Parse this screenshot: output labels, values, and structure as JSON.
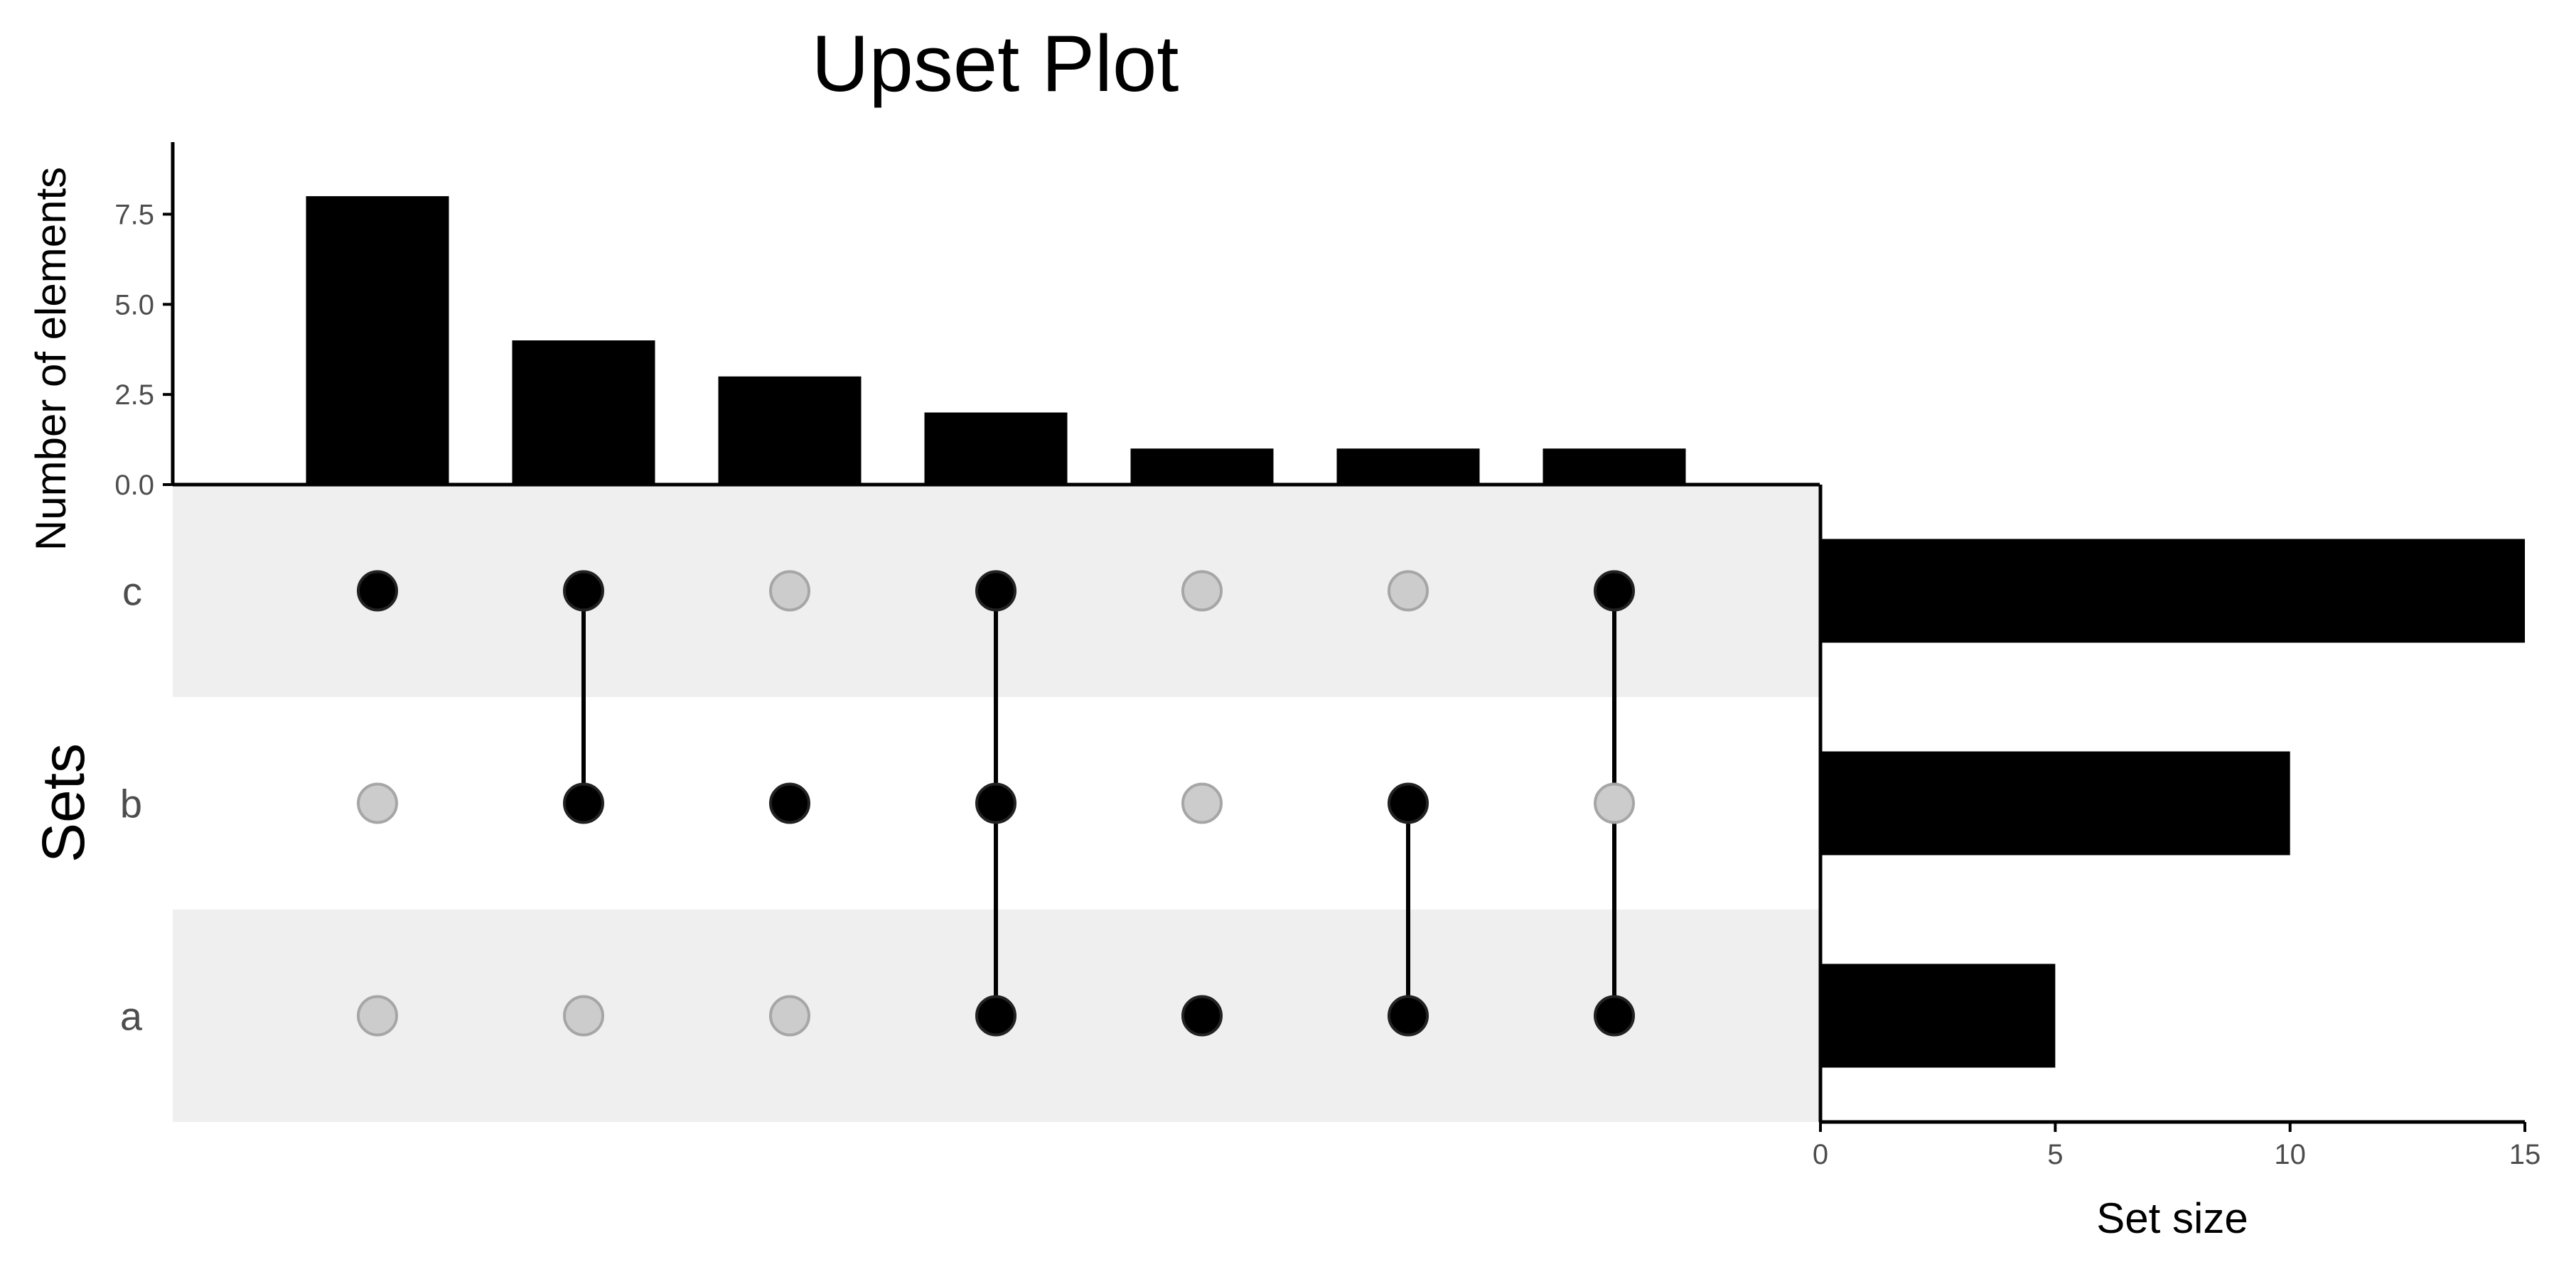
{
  "chart_data": {
    "type": "upset",
    "title": "Upset Plot",
    "sets": [
      "c",
      "b",
      "a"
    ],
    "set_sizes": [
      15,
      10,
      5
    ],
    "intersections": [
      {
        "members": [
          "c"
        ],
        "count": 8
      },
      {
        "members": [
          "c",
          "b"
        ],
        "count": 4
      },
      {
        "members": [
          "b"
        ],
        "count": 3
      },
      {
        "members": [
          "c",
          "b",
          "a"
        ],
        "count": 2
      },
      {
        "members": [
          "a"
        ],
        "count": 1
      },
      {
        "members": [
          "b",
          "a"
        ],
        "count": 1
      },
      {
        "members": [
          "c",
          "a"
        ],
        "count": 1
      }
    ],
    "intersection_axis": {
      "label": "Number of elements",
      "ticks": [
        0,
        2.5,
        5,
        7.5
      ],
      "tick_labels": [
        "0.0",
        "2.5",
        "5.0",
        "7.5"
      ],
      "ylim": [
        0,
        9.5
      ]
    },
    "set_size_axis": {
      "label": "Set size",
      "ticks": [
        0,
        5,
        10,
        15
      ],
      "tick_labels": [
        "0",
        "5",
        "10",
        "15"
      ],
      "xlim": [
        0,
        15
      ]
    },
    "matrix_axis_label": "Sets",
    "colors": {
      "bar": "#000000",
      "dot_active": "#000000",
      "dot_inactive": "#cccccc",
      "dot_inactive_stroke": "#a6a6a6",
      "stripe": "#efefef",
      "tick_text": "#4d4d4d"
    }
  }
}
